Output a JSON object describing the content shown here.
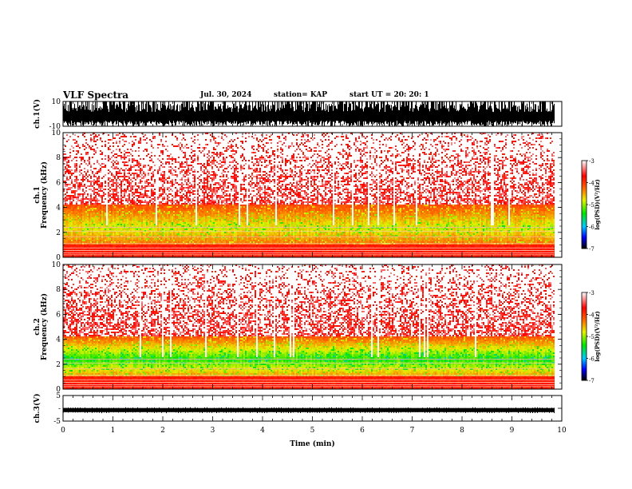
{
  "header": {
    "title": "VLF Spectra",
    "date": "Jul. 30, 2024",
    "station": "station= KAP",
    "start": "start  UT  =   20: 20: 1"
  },
  "chart_data": [
    {
      "type": "line",
      "panel": "ch1-waveform",
      "ylabel": "ch.1(V)",
      "ylim": [
        -10,
        10
      ],
      "y_ticks": [
        10,
        -10
      ],
      "xlim": [
        0,
        10
      ],
      "data_extent_min": [
        0,
        9.85
      ],
      "amplitude_envelope": [
        -10,
        10
      ],
      "color": "#000000"
    },
    {
      "type": "heatmap",
      "panel": "ch1-spectrogram",
      "ylabel": "ch.1\nFrequency  (kHz)",
      "ylabel_lines": [
        "ch.1",
        "Frequency  (kHz)"
      ],
      "ylim": [
        0,
        10
      ],
      "y_ticks": [
        0,
        2,
        4,
        6,
        8,
        10
      ],
      "xlim": [
        0,
        10
      ],
      "data_extent_min": [
        0,
        9.85
      ],
      "colorbar": {
        "label": "log(PSD)(V²/Hz)",
        "range": [
          -7,
          -3
        ],
        "ticks": [
          -3,
          -4,
          -5,
          -6,
          -7
        ],
        "colors": [
          "#ffffff",
          "#ff0000",
          "#ffff00",
          "#00ff00",
          "#00ffff",
          "#0000ff",
          "#000000"
        ]
      }
    },
    {
      "type": "heatmap",
      "panel": "ch2-spectrogram",
      "ylabel": "ch.2\nFrequency  (kHz)",
      "ylabel_lines": [
        "ch.2",
        "Frequency  (kHz)"
      ],
      "ylim": [
        0,
        10
      ],
      "y_ticks": [
        0,
        2,
        4,
        6,
        8,
        10
      ],
      "xlim": [
        0,
        10
      ],
      "data_extent_min": [
        0,
        9.85
      ],
      "colorbar": {
        "label": "log(PSD)(V²/Hz)",
        "range": [
          -7,
          -3
        ],
        "ticks": [
          -3,
          -4,
          -5,
          -6,
          -7
        ],
        "colors": [
          "#ffffff",
          "#ff0000",
          "#ffff00",
          "#00ff00",
          "#00ffff",
          "#0000ff",
          "#000000"
        ]
      }
    },
    {
      "type": "line",
      "panel": "ch3-waveform",
      "ylabel": "ch.3(V)",
      "ylim": [
        -5,
        5
      ],
      "y_ticks": [
        5,
        0,
        -5
      ],
      "y_tick_labels": [
        "5",
        "-",
        "-5"
      ],
      "xlim": [
        0,
        10
      ],
      "data_extent_min": [
        0,
        9.85
      ],
      "amplitude_envelope": [
        -1.5,
        0
      ],
      "color": "#000000",
      "xlabel": "Time  (min)",
      "x_ticks": [
        0,
        1,
        2,
        3,
        4,
        5,
        6,
        7,
        8,
        9,
        10
      ]
    }
  ]
}
